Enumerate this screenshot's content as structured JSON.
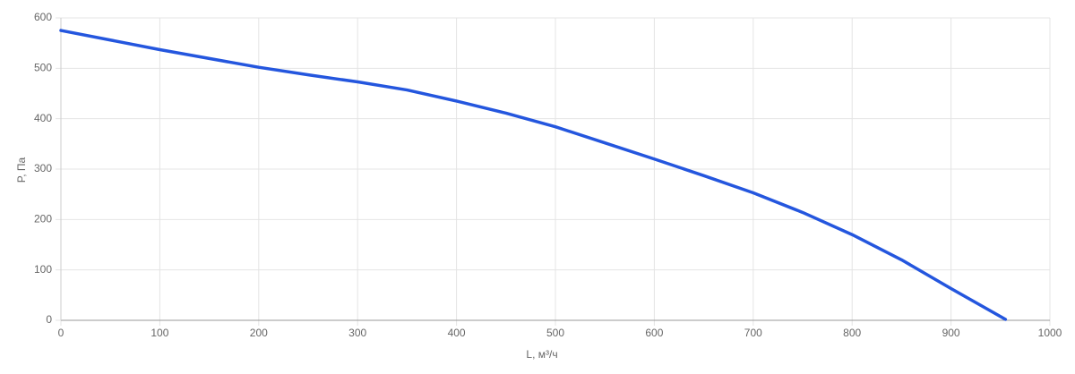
{
  "chart_data": {
    "type": "line",
    "x_label": "L, м³/ч",
    "y_label": "P, Па",
    "x": [
      0,
      100,
      200,
      250,
      300,
      350,
      400,
      450,
      500,
      550,
      600,
      650,
      700,
      750,
      800,
      850,
      900,
      955
    ],
    "series": [
      {
        "name": "P",
        "color": "#2456de",
        "values": [
          575,
          537,
          502,
          487,
          473,
          457,
          435,
          411,
          384,
          352,
          320,
          287,
          253,
          214,
          170,
          120,
          63,
          2
        ]
      }
    ],
    "xlim": [
      0,
      1000
    ],
    "xticks": [
      0,
      100,
      200,
      300,
      400,
      500,
      600,
      700,
      800,
      900,
      1000
    ],
    "ylim": [
      0,
      600
    ],
    "yticks": [
      0,
      100,
      200,
      300,
      400,
      500,
      600
    ],
    "grid": true
  }
}
